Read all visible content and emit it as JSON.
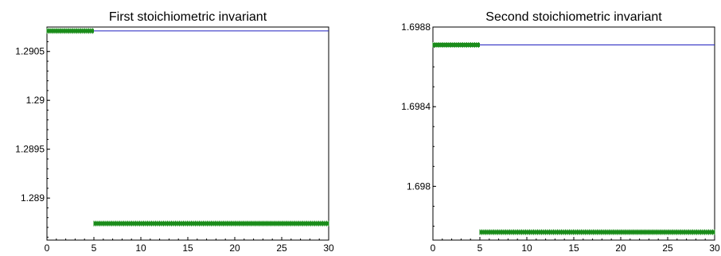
{
  "chart_data": [
    {
      "type": "line",
      "title": "First stoichiometric invariant",
      "xlabel": "",
      "ylabel": "",
      "xlim": [
        0,
        30
      ],
      "ylim": [
        1.28857,
        1.29075
      ],
      "xticks": [
        0,
        5,
        10,
        15,
        20,
        25,
        30
      ],
      "xtick_labels": [
        "0",
        "5",
        "10",
        "15",
        "20",
        "25",
        "30"
      ],
      "yticks": [
        1.289,
        1.2895,
        1.29,
        1.2905
      ],
      "ytick_labels": [
        "1.289",
        "1.2895",
        "1.29",
        "1.2905"
      ],
      "y_minor_step": 0.0001,
      "grid": false,
      "legend": "none",
      "series": [
        {
          "kind": "line",
          "color": "#1f1fbf",
          "x": [
            0,
            30
          ],
          "y": [
            1.29071,
            1.29071
          ]
        },
        {
          "kind": "markers",
          "color": "#1a8c1a",
          "x": [
            0,
            5
          ],
          "y": [
            1.29071,
            1.29071
          ]
        },
        {
          "kind": "markers",
          "color": "#1a8c1a",
          "x": [
            5,
            30
          ],
          "y": [
            1.28874,
            1.28874
          ]
        }
      ]
    },
    {
      "type": "line",
      "title": "Second stoichiometric invariant",
      "xlabel": "",
      "ylabel": "",
      "xlim": [
        0,
        30
      ],
      "ylim": [
        1.69773,
        1.6988
      ],
      "xticks": [
        0,
        5,
        10,
        15,
        20,
        25,
        30
      ],
      "xtick_labels": [
        "0",
        "5",
        "10",
        "15",
        "20",
        "25",
        "30"
      ],
      "yticks": [
        1.698,
        1.6984,
        1.6988
      ],
      "ytick_labels": [
        "1.698",
        "1.6984",
        "1.6988"
      ],
      "y_minor_step": 0.0001,
      "grid": false,
      "legend": "none",
      "series": [
        {
          "kind": "line",
          "color": "#1f1fbf",
          "x": [
            0,
            30
          ],
          "y": [
            1.69871,
            1.69871
          ]
        },
        {
          "kind": "markers",
          "color": "#1a8c1a",
          "x": [
            0,
            5
          ],
          "y": [
            1.69871,
            1.69871
          ]
        },
        {
          "kind": "markers",
          "color": "#1a8c1a",
          "x": [
            5,
            30
          ],
          "y": [
            1.69777,
            1.69777
          ]
        }
      ]
    }
  ]
}
